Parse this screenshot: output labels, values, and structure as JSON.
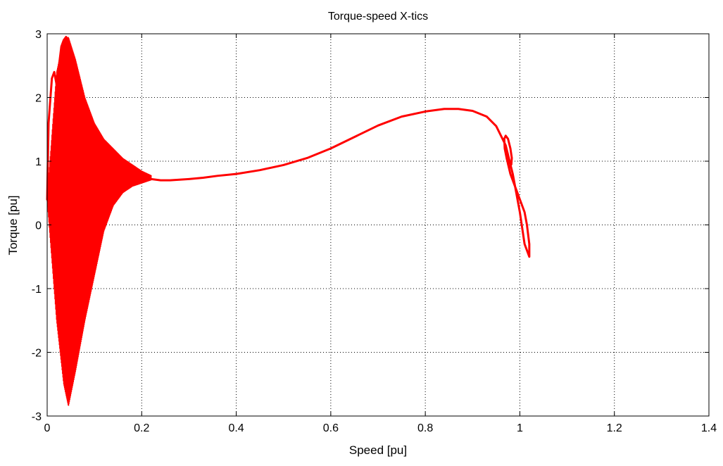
{
  "chart_data": {
    "type": "line",
    "title": "Torque-speed X-tics",
    "xlabel": "Speed [pu]",
    "ylabel": "Torque [pu]",
    "xlim": [
      0,
      1.4
    ],
    "ylim": [
      -3,
      3
    ],
    "xticks": [
      0,
      0.2,
      0.4,
      0.6,
      0.8,
      1,
      1.2,
      1.4
    ],
    "xtick_labels": [
      "0",
      "0.2",
      "0.4",
      "0.6",
      "0.8",
      "1",
      "1.2",
      "1.4"
    ],
    "yticks": [
      -3,
      -2,
      -1,
      0,
      1,
      2,
      3
    ],
    "ytick_labels": [
      "-3",
      "-2",
      "-1",
      "0",
      "1",
      "2",
      "3"
    ],
    "grid": true,
    "grid_style": "dotted",
    "series": [
      {
        "color": "#ff0000",
        "x": [
          0.0,
          0.003,
          0.006,
          0.01,
          0.015,
          0.02,
          0.025,
          0.03,
          0.035,
          0.04,
          0.045,
          0.05,
          0.06,
          0.07,
          0.08,
          0.09,
          0.1,
          0.11,
          0.12,
          0.13,
          0.14,
          0.15,
          0.16,
          0.17,
          0.18,
          0.19,
          0.2,
          0.22,
          0.24,
          0.26,
          0.28,
          0.3,
          0.33,
          0.36,
          0.4,
          0.45,
          0.5,
          0.55,
          0.6,
          0.65,
          0.7,
          0.75,
          0.8,
          0.84,
          0.87,
          0.9,
          0.93,
          0.95,
          0.97,
          0.985,
          1.0,
          1.01,
          1.02,
          1.02,
          1.015,
          1.01,
          1.0,
          0.99,
          0.98,
          0.972,
          0.968,
          0.967,
          0.97,
          0.975,
          0.98,
          0.983,
          0.982,
          0.978,
          0.975,
          0.977,
          0.98
        ],
        "y": [
          0.4,
          1.6,
          1.9,
          2.3,
          2.4,
          2.2,
          2.5,
          2.8,
          2.9,
          2.95,
          2.9,
          2.7,
          2.2,
          1.8,
          1.5,
          1.3,
          1.1,
          1.0,
          0.95,
          0.9,
          0.88,
          0.85,
          0.82,
          0.8,
          0.78,
          0.76,
          0.75,
          0.72,
          0.7,
          0.7,
          0.71,
          0.72,
          0.74,
          0.77,
          0.8,
          0.86,
          0.94,
          1.05,
          1.2,
          1.38,
          1.56,
          1.7,
          1.78,
          1.82,
          1.82,
          1.79,
          1.7,
          1.55,
          1.25,
          0.8,
          0.2,
          -0.3,
          -0.5,
          -0.3,
          0.0,
          0.2,
          0.4,
          0.6,
          0.8,
          1.05,
          1.2,
          1.35,
          1.4,
          1.35,
          1.2,
          1.05,
          0.95,
          0.9,
          0.95,
          1.0,
          1.0
        ]
      }
    ],
    "oscillation_region": {
      "note_values": "dense oscillating band",
      "x_start": 0.0,
      "x_end": 0.22,
      "upper_envelope_x": [
        0.0,
        0.02,
        0.035,
        0.045,
        0.06,
        0.08,
        0.1,
        0.12,
        0.14,
        0.16,
        0.18,
        0.2,
        0.22
      ],
      "upper_envelope_y": [
        0.4,
        2.4,
        2.9,
        2.95,
        2.6,
        2.0,
        1.6,
        1.35,
        1.2,
        1.05,
        0.95,
        0.85,
        0.78
      ],
      "lower_envelope_x": [
        0.0,
        0.02,
        0.035,
        0.045,
        0.06,
        0.08,
        0.1,
        0.12,
        0.14,
        0.16,
        0.18,
        0.2,
        0.22
      ],
      "lower_envelope_y": [
        0.4,
        -1.5,
        -2.5,
        -2.85,
        -2.3,
        -1.5,
        -0.8,
        -0.1,
        0.3,
        0.5,
        0.6,
        0.65,
        0.7
      ]
    }
  }
}
